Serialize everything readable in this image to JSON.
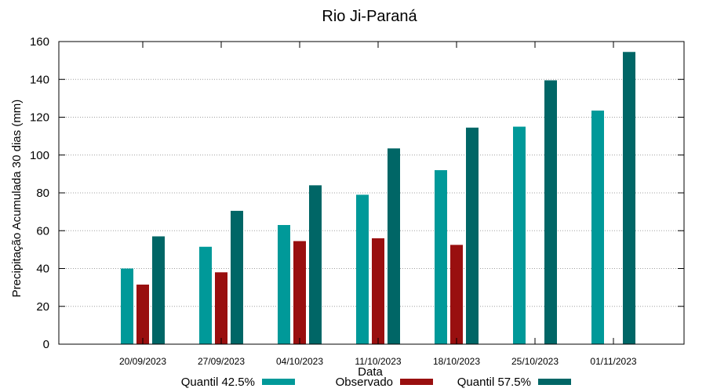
{
  "chart_data": {
    "type": "bar",
    "title": "Rio Ji-Paraná",
    "xlabel": "Data",
    "ylabel": "Precipitação Acumulada 30 dias (mm)",
    "ylim": [
      0,
      160
    ],
    "yticks": [
      0,
      20,
      40,
      60,
      80,
      100,
      120,
      140,
      160
    ],
    "grid": true,
    "legend_position": "bottom",
    "categories": [
      "20/09/2023",
      "27/09/2023",
      "04/10/2023",
      "11/10/2023",
      "18/10/2023",
      "25/10/2023",
      "01/11/2023"
    ],
    "series": [
      {
        "name": "Quantil 42.5%",
        "color": "#009999",
        "values": [
          40,
          51.5,
          63,
          79,
          92,
          115,
          123.5
        ]
      },
      {
        "name": "Observado",
        "color": "#990f0f",
        "values": [
          31.5,
          38,
          54.5,
          56,
          52.5,
          null,
          null
        ]
      },
      {
        "name": "Quantil 57.5%",
        "color": "#006666",
        "values": [
          57,
          70.5,
          84,
          103.5,
          114.5,
          139.5,
          154.5
        ]
      }
    ]
  }
}
